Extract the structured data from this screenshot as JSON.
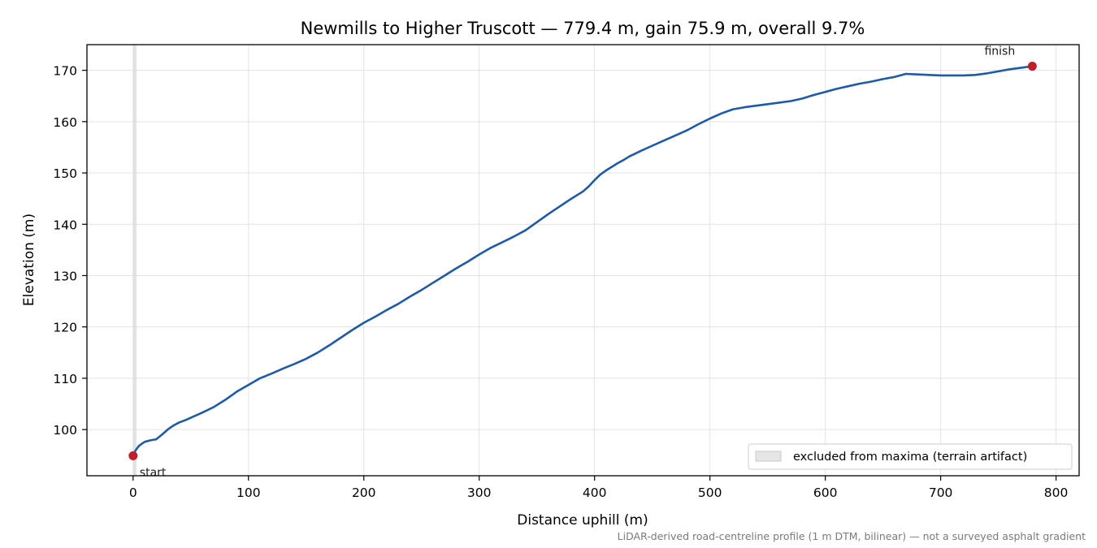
{
  "chart_data": {
    "type": "line",
    "title": "Newmills to Higher Truscott — 779.4 m, gain 75.9 m, overall 9.7%",
    "xlabel": "Distance uphill (m)",
    "ylabel": "Elevation (m)",
    "footnote": "LiDAR-derived road-centreline profile (1 m DTM, bilinear) — not a surveyed asphalt gradient",
    "xlim": [
      -40,
      820
    ],
    "ylim": [
      91,
      175
    ],
    "xticks": [
      0,
      100,
      200,
      300,
      400,
      500,
      600,
      700,
      800
    ],
    "yticks": [
      100,
      110,
      120,
      130,
      140,
      150,
      160,
      170
    ],
    "grid": true,
    "legend_placement": "lower-right",
    "line_color": "#1f5aa6",
    "marker_color": "#c0202a",
    "shade_color": "#d9d9d9",
    "excluded_region": {
      "x": [
        0,
        3
      ],
      "legend_label": "excluded from maxima (terrain artifact)"
    },
    "markers": [
      {
        "label": "start",
        "x": 0,
        "y": 94.9
      },
      {
        "label": "finish",
        "x": 779.4,
        "y": 170.8
      }
    ],
    "series": [
      {
        "x": [
          0,
          2,
          5,
          8,
          10,
          15,
          20,
          25,
          30,
          35,
          40,
          45,
          50,
          60,
          70,
          80,
          90,
          100,
          110,
          120,
          130,
          140,
          150,
          160,
          170,
          180,
          190,
          200,
          210,
          220,
          230,
          240,
          250,
          260,
          270,
          280,
          290,
          300,
          310,
          320,
          330,
          340,
          350,
          360,
          370,
          380,
          390,
          395,
          400,
          405,
          410,
          415,
          420,
          425,
          430,
          440,
          450,
          460,
          470,
          480,
          490,
          500,
          510,
          520,
          530,
          540,
          550,
          560,
          570,
          580,
          590,
          600,
          610,
          620,
          630,
          640,
          650,
          660,
          670,
          680,
          690,
          700,
          710,
          720,
          730,
          740,
          750,
          760,
          770,
          779.4
        ],
        "y": [
          94.9,
          95.9,
          96.8,
          97.3,
          97.6,
          97.9,
          98.1,
          99.0,
          100.0,
          100.8,
          101.4,
          101.8,
          102.3,
          103.3,
          104.4,
          105.8,
          107.4,
          108.7,
          110.0,
          110.9,
          111.9,
          112.8,
          113.8,
          115.0,
          116.4,
          117.9,
          119.4,
          120.8,
          122.0,
          123.3,
          124.5,
          125.9,
          127.2,
          128.6,
          130.0,
          131.4,
          132.7,
          134.1,
          135.4,
          136.5,
          137.6,
          138.8,
          140.4,
          142.0,
          143.5,
          145.0,
          146.4,
          147.4,
          148.6,
          149.7,
          150.5,
          151.2,
          151.9,
          152.5,
          153.2,
          154.3,
          155.3,
          156.3,
          157.3,
          158.3,
          159.5,
          160.6,
          161.6,
          162.4,
          162.8,
          163.1,
          163.4,
          163.7,
          164.0,
          164.5,
          165.2,
          165.8,
          166.4,
          166.9,
          167.4,
          167.8,
          168.3,
          168.7,
          169.3,
          169.2,
          169.1,
          169.0,
          169.0,
          169.0,
          169.1,
          169.4,
          169.8,
          170.2,
          170.5,
          170.8
        ]
      }
    ]
  }
}
